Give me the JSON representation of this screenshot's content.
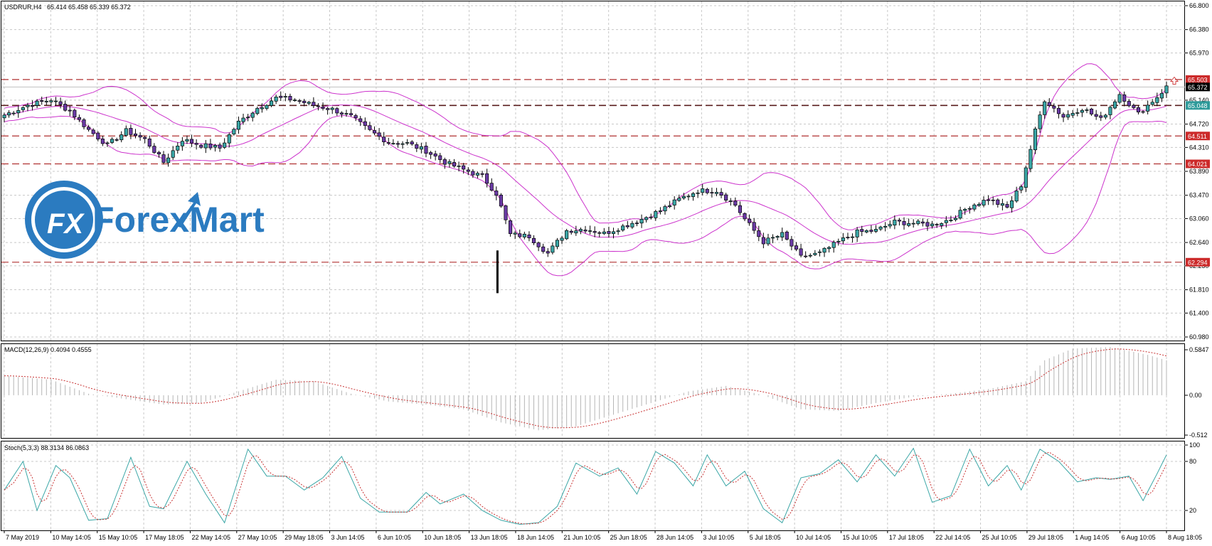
{
  "header": {
    "symbol_info": "USDRUR,H4",
    "ohlc": "65.414 65.458 65.339 65.372",
    "macd_info": "MACD(12,26,9) 0.4094 0.4555",
    "stoch_info": "Stoch(5,3,3) 88.3134 86.0863"
  },
  "logo": {
    "fx": "FX",
    "name": "ForexMart"
  },
  "colors": {
    "bull_body": "#3aa6a6",
    "bear_body": "#6a3aa6",
    "bollinger": "#cc33cc",
    "level_line": "#b03030",
    "level_label_bg": "#cc2a2a",
    "current_label_bg": "#000000",
    "bb_mid_label_bg": "#2e9a9a",
    "macd_hist": "#b5b5b5",
    "macd_signal": "#c83232",
    "stoch_main": "#3aa6a6",
    "stoch_signal": "#c83232",
    "logo_blue": "#2b7bc0"
  },
  "chart_data": [
    {
      "type": "candlestick",
      "title": "USDRUR,H4",
      "x_tick_labels": [
        "7 May 2019",
        "10 May 14:05",
        "15 May 10:05",
        "17 May 18:05",
        "22 May 14:05",
        "27 May 10:05",
        "29 May 18:05",
        "3 Jun 14:05",
        "6 Jun 10:05",
        "10 Jun 18:05",
        "13 Jun 18:05",
        "18 Jun 14:05",
        "21 Jun 10:05",
        "25 Jun 18:05",
        "28 Jun 14:05",
        "3 Jul 10:05",
        "5 Jul 18:05",
        "10 Jul 14:05",
        "15 Jul 10:05",
        "17 Jul 18:05",
        "22 Jul 14:05",
        "25 Jul 10:05",
        "29 Jul 18:05",
        "1 Aug 14:05",
        "6 Aug 10:05",
        "8 Aug 18:05"
      ],
      "y_tick_labels": [
        "66.800",
        "66.380",
        "65.970",
        "65.140",
        "64.720",
        "64.310",
        "63.890",
        "63.470",
        "63.060",
        "62.640",
        "62.230",
        "61.810",
        "61.400",
        "60.980"
      ],
      "ylim": [
        60.98,
        66.8
      ],
      "horizontal_levels": [
        {
          "label": "65.503",
          "value": 65.503,
          "style": "dashed-red"
        },
        {
          "label": "65.048",
          "value": 65.048,
          "style": "dashed-dark"
        },
        {
          "label": "64.511",
          "value": 64.511,
          "style": "dashed-red"
        },
        {
          "label": "64.021",
          "value": 64.021,
          "style": "dashed-red"
        },
        {
          "label": "62.294",
          "value": 62.294,
          "style": "dashed-red"
        }
      ],
      "current_price_label": "65.372",
      "current_price": 65.372,
      "anchors": [
        [
          0,
          64.88
        ],
        [
          5,
          65.05
        ],
        [
          10,
          65.15
        ],
        [
          14,
          64.95
        ],
        [
          18,
          64.62
        ],
        [
          22,
          64.35
        ],
        [
          26,
          64.6
        ],
        [
          30,
          64.45
        ],
        [
          34,
          64.05
        ],
        [
          38,
          64.45
        ],
        [
          42,
          64.35
        ],
        [
          46,
          64.3
        ],
        [
          50,
          64.75
        ],
        [
          54,
          65.0
        ],
        [
          58,
          65.18
        ],
        [
          62,
          65.15
        ],
        [
          66,
          65.05
        ],
        [
          70,
          64.98
        ],
        [
          74,
          64.85
        ],
        [
          78,
          64.6
        ],
        [
          82,
          64.4
        ],
        [
          86,
          64.38
        ],
        [
          90,
          64.25
        ],
        [
          94,
          64.05
        ],
        [
          98,
          63.92
        ],
        [
          102,
          63.8
        ],
        [
          105,
          63.5
        ],
        [
          108,
          62.78
        ],
        [
          112,
          62.75
        ],
        [
          116,
          62.45
        ],
        [
          120,
          62.85
        ],
        [
          124,
          62.88
        ],
        [
          128,
          62.8
        ],
        [
          132,
          62.92
        ],
        [
          136,
          63.05
        ],
        [
          140,
          63.2
        ],
        [
          144,
          63.4
        ],
        [
          148,
          63.55
        ],
        [
          152,
          63.55
        ],
        [
          156,
          63.3
        ],
        [
          158,
          63.05
        ],
        [
          162,
          62.65
        ],
        [
          166,
          62.78
        ],
        [
          170,
          62.38
        ],
        [
          174,
          62.45
        ],
        [
          178,
          62.65
        ],
        [
          182,
          62.82
        ],
        [
          186,
          62.85
        ],
        [
          190,
          63.0
        ],
        [
          194,
          62.98
        ],
        [
          198,
          62.95
        ],
        [
          202,
          63.05
        ],
        [
          206,
          63.28
        ],
        [
          210,
          63.4
        ],
        [
          214,
          63.25
        ],
        [
          217,
          63.65
        ],
        [
          220,
          64.6
        ],
        [
          222,
          65.15
        ],
        [
          226,
          64.85
        ],
        [
          230,
          65.0
        ],
        [
          234,
          64.8
        ],
        [
          238,
          65.25
        ],
        [
          242,
          64.9
        ],
        [
          246,
          65.2
        ],
        [
          248,
          65.37
        ]
      ],
      "spike": {
        "high": 62.5,
        "low": 61.75
      }
    },
    {
      "type": "histogram+line",
      "title": "MACD(12,26,9)",
      "macd": 0.4094,
      "signal": 0.4555,
      "y_tick_labels": [
        "0.5847",
        "0.00",
        "-0.512"
      ],
      "ylim": [
        -0.512,
        0.5847
      ],
      "anchors": [
        [
          0,
          0.25
        ],
        [
          10,
          0.2
        ],
        [
          18,
          0.02
        ],
        [
          26,
          -0.05
        ],
        [
          34,
          -0.12
        ],
        [
          42,
          -0.1
        ],
        [
          50,
          0.05
        ],
        [
          58,
          0.2
        ],
        [
          66,
          0.18
        ],
        [
          74,
          0.02
        ],
        [
          82,
          -0.08
        ],
        [
          90,
          -0.12
        ],
        [
          98,
          -0.18
        ],
        [
          106,
          -0.35
        ],
        [
          114,
          -0.45
        ],
        [
          122,
          -0.4
        ],
        [
          130,
          -0.25
        ],
        [
          138,
          -0.1
        ],
        [
          146,
          0.05
        ],
        [
          154,
          0.12
        ],
        [
          162,
          0.0
        ],
        [
          170,
          -0.18
        ],
        [
          178,
          -0.2
        ],
        [
          186,
          -0.1
        ],
        [
          194,
          -0.02
        ],
        [
          202,
          0.02
        ],
        [
          210,
          0.08
        ],
        [
          218,
          0.18
        ],
        [
          222,
          0.45
        ],
        [
          228,
          0.6
        ],
        [
          236,
          0.62
        ],
        [
          244,
          0.52
        ],
        [
          248,
          0.45
        ]
      ]
    },
    {
      "type": "line",
      "title": "Stoch(5,3,3)",
      "main": 88.3134,
      "signal": 86.0863,
      "y_tick_labels": [
        "100",
        "80",
        "20"
      ],
      "ylim": [
        0,
        100
      ],
      "anchors": [
        [
          0,
          45
        ],
        [
          4,
          80
        ],
        [
          7,
          20
        ],
        [
          11,
          75
        ],
        [
          14,
          60
        ],
        [
          18,
          8
        ],
        [
          22,
          10
        ],
        [
          27,
          85
        ],
        [
          31,
          25
        ],
        [
          34,
          22
        ],
        [
          39,
          80
        ],
        [
          43,
          40
        ],
        [
          47,
          5
        ],
        [
          52,
          95
        ],
        [
          56,
          62
        ],
        [
          60,
          62
        ],
        [
          64,
          45
        ],
        [
          68,
          60
        ],
        [
          72,
          86
        ],
        [
          76,
          35
        ],
        [
          80,
          18
        ],
        [
          86,
          18
        ],
        [
          90,
          42
        ],
        [
          93,
          28
        ],
        [
          98,
          40
        ],
        [
          102,
          20
        ],
        [
          106,
          8
        ],
        [
          110,
          3
        ],
        [
          114,
          5
        ],
        [
          118,
          25
        ],
        [
          122,
          78
        ],
        [
          127,
          62
        ],
        [
          131,
          72
        ],
        [
          135,
          40
        ],
        [
          139,
          92
        ],
        [
          143,
          78
        ],
        [
          147,
          50
        ],
        [
          150,
          88
        ],
        [
          154,
          50
        ],
        [
          158,
          68
        ],
        [
          162,
          22
        ],
        [
          166,
          5
        ],
        [
          170,
          60
        ],
        [
          174,
          65
        ],
        [
          178,
          82
        ],
        [
          182,
          55
        ],
        [
          186,
          88
        ],
        [
          190,
          62
        ],
        [
          194,
          96
        ],
        [
          198,
          30
        ],
        [
          202,
          38
        ],
        [
          206,
          95
        ],
        [
          210,
          50
        ],
        [
          214,
          75
        ],
        [
          217,
          45
        ],
        [
          221,
          95
        ],
        [
          225,
          80
        ],
        [
          229,
          55
        ],
        [
          233,
          60
        ],
        [
          236,
          58
        ],
        [
          240,
          62
        ],
        [
          243,
          32
        ],
        [
          246,
          65
        ],
        [
          248,
          88
        ]
      ]
    }
  ]
}
